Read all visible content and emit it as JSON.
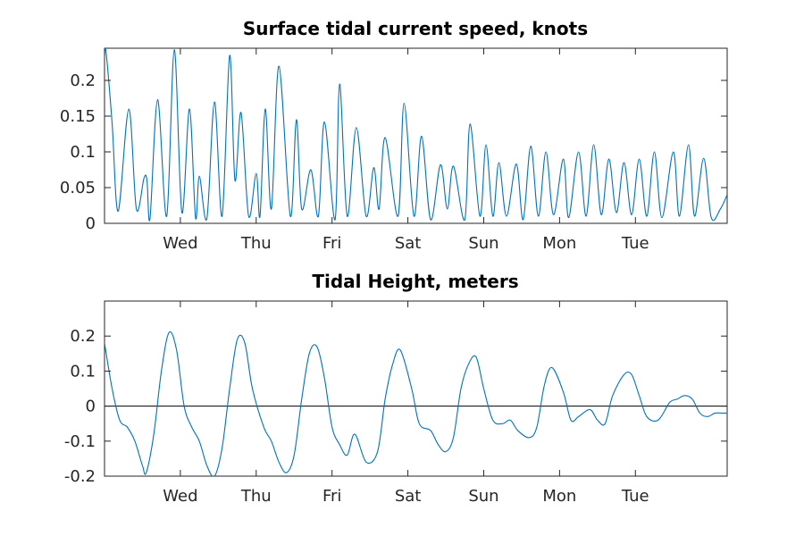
{
  "chart_data": [
    {
      "type": "line",
      "title": "Surface tidal current speed, knots",
      "xlabel": "",
      "ylabel": "",
      "xlim": [
        0,
        8.21
      ],
      "ylim": [
        0,
        0.245
      ],
      "xticks": [
        1,
        2,
        3,
        4,
        5,
        6,
        7
      ],
      "xtick_labels": [
        "Wed",
        "Thu",
        "Fri",
        "Sat",
        "Sun",
        "Mon",
        "Tue"
      ],
      "yticks": [
        0,
        0.05,
        0.1,
        0.15,
        0.2
      ],
      "ytick_labels": [
        "0",
        "0.05",
        "0.1",
        "0.15",
        "0.2"
      ],
      "grid": false,
      "color": "#0072BD",
      "series": [
        {
          "x": [
            0,
            0.02,
            0.1,
            0.18,
            0.32,
            0.42,
            0.52,
            0.56,
            0.6,
            0.7,
            0.82,
            0.92,
            1.02,
            1.12,
            1.2,
            1.25,
            1.35,
            1.45,
            1.55,
            1.65,
            1.72,
            1.8,
            1.9,
            2.0,
            2.05,
            2.12,
            2.2,
            2.3,
            2.45,
            2.53,
            2.6,
            2.72,
            2.82,
            2.9,
            3.04,
            3.1,
            3.2,
            3.32,
            3.45,
            3.55,
            3.62,
            3.7,
            3.87,
            3.95,
            4.08,
            4.18,
            4.3,
            4.43,
            4.52,
            4.6,
            4.75,
            4.82,
            4.95,
            5.03,
            5.12,
            5.2,
            5.3,
            5.43,
            5.52,
            5.62,
            5.72,
            5.82,
            5.92,
            6.05,
            6.12,
            6.25,
            6.35,
            6.45,
            6.55,
            6.65,
            6.75,
            6.85,
            6.95,
            7.05,
            7.15,
            7.25,
            7.35,
            7.5,
            7.58,
            7.7,
            7.78,
            7.9,
            8.0,
            8.12,
            8.21
          ],
          "y": [
            0.232,
            0.24,
            0.14,
            0.017,
            0.16,
            0.02,
            0.063,
            0.06,
            0.007,
            0.173,
            0.01,
            0.243,
            0.015,
            0.16,
            0.008,
            0.066,
            0.007,
            0.17,
            0.01,
            0.235,
            0.06,
            0.155,
            0.01,
            0.07,
            0.01,
            0.16,
            0.02,
            0.22,
            0.01,
            0.145,
            0.02,
            0.075,
            0.01,
            0.142,
            0.005,
            0.195,
            0.01,
            0.134,
            0.01,
            0.078,
            0.02,
            0.12,
            0.01,
            0.168,
            0.01,
            0.122,
            0.005,
            0.082,
            0.02,
            0.08,
            0.005,
            0.139,
            0.01,
            0.11,
            0.01,
            0.085,
            0.01,
            0.083,
            0.005,
            0.108,
            0.01,
            0.1,
            0.012,
            0.09,
            0.008,
            0.1,
            0.01,
            0.11,
            0.012,
            0.09,
            0.015,
            0.085,
            0.012,
            0.09,
            0.01,
            0.1,
            0.008,
            0.1,
            0.01,
            0.11,
            0.01,
            0.091,
            0.008,
            0.02,
            0.04
          ]
        }
      ]
    },
    {
      "type": "line",
      "title": "Tidal Height, meters",
      "xlabel": "",
      "ylabel": "",
      "xlim": [
        0,
        8.21
      ],
      "ylim": [
        -0.2,
        0.3
      ],
      "xticks": [
        1,
        2,
        3,
        4,
        5,
        6,
        7
      ],
      "xtick_labels": [
        "Wed",
        "Thu",
        "Fri",
        "Sat",
        "Sun",
        "Mon",
        "Tue"
      ],
      "yticks": [
        -0.2,
        -0.1,
        0,
        0.1,
        0.2
      ],
      "ytick_labels": [
        "-0.2",
        "-0.1",
        "0",
        "0.1",
        "0.2"
      ],
      "grid": false,
      "zero_line": true,
      "color": "#0072BD",
      "series": [
        {
          "x": [
            0,
            0.1,
            0.2,
            0.3,
            0.4,
            0.5,
            0.55,
            0.65,
            0.75,
            0.85,
            0.95,
            1.05,
            1.15,
            1.25,
            1.35,
            1.45,
            1.55,
            1.65,
            1.75,
            1.85,
            1.95,
            2.1,
            2.2,
            2.3,
            2.4,
            2.5,
            2.6,
            2.7,
            2.8,
            2.9,
            3.0,
            3.1,
            3.2,
            3.3,
            3.45,
            3.6,
            3.7,
            3.8,
            3.9,
            4.05,
            4.15,
            4.3,
            4.4,
            4.5,
            4.6,
            4.7,
            4.8,
            4.9,
            5.0,
            5.12,
            5.25,
            5.35,
            5.45,
            5.6,
            5.7,
            5.8,
            5.9,
            6.05,
            6.15,
            6.25,
            6.4,
            6.5,
            6.6,
            6.7,
            6.85,
            6.95,
            7.05,
            7.15,
            7.3,
            7.45,
            7.55,
            7.65,
            7.75,
            7.85,
            7.95,
            8.05,
            8.15,
            8.21
          ],
          "y": [
            0.18,
            0.05,
            -0.04,
            -0.06,
            -0.1,
            -0.17,
            -0.19,
            -0.08,
            0.1,
            0.21,
            0.16,
            0.0,
            -0.06,
            -0.1,
            -0.17,
            -0.2,
            -0.12,
            0.05,
            0.19,
            0.18,
            0.05,
            -0.06,
            -0.1,
            -0.16,
            -0.19,
            -0.14,
            0.02,
            0.15,
            0.17,
            0.08,
            -0.06,
            -0.11,
            -0.14,
            -0.08,
            -0.16,
            -0.13,
            0.02,
            0.12,
            0.16,
            0.05,
            -0.05,
            -0.07,
            -0.11,
            -0.13,
            -0.09,
            0.05,
            0.12,
            0.14,
            0.05,
            -0.04,
            -0.05,
            -0.04,
            -0.07,
            -0.09,
            -0.06,
            0.06,
            0.11,
            0.04,
            -0.04,
            -0.03,
            -0.01,
            -0.04,
            -0.05,
            0.03,
            0.09,
            0.09,
            0.03,
            -0.03,
            -0.04,
            0.01,
            0.02,
            0.03,
            0.02,
            -0.02,
            -0.03,
            -0.02,
            -0.02,
            -0.02
          ]
        }
      ]
    }
  ]
}
